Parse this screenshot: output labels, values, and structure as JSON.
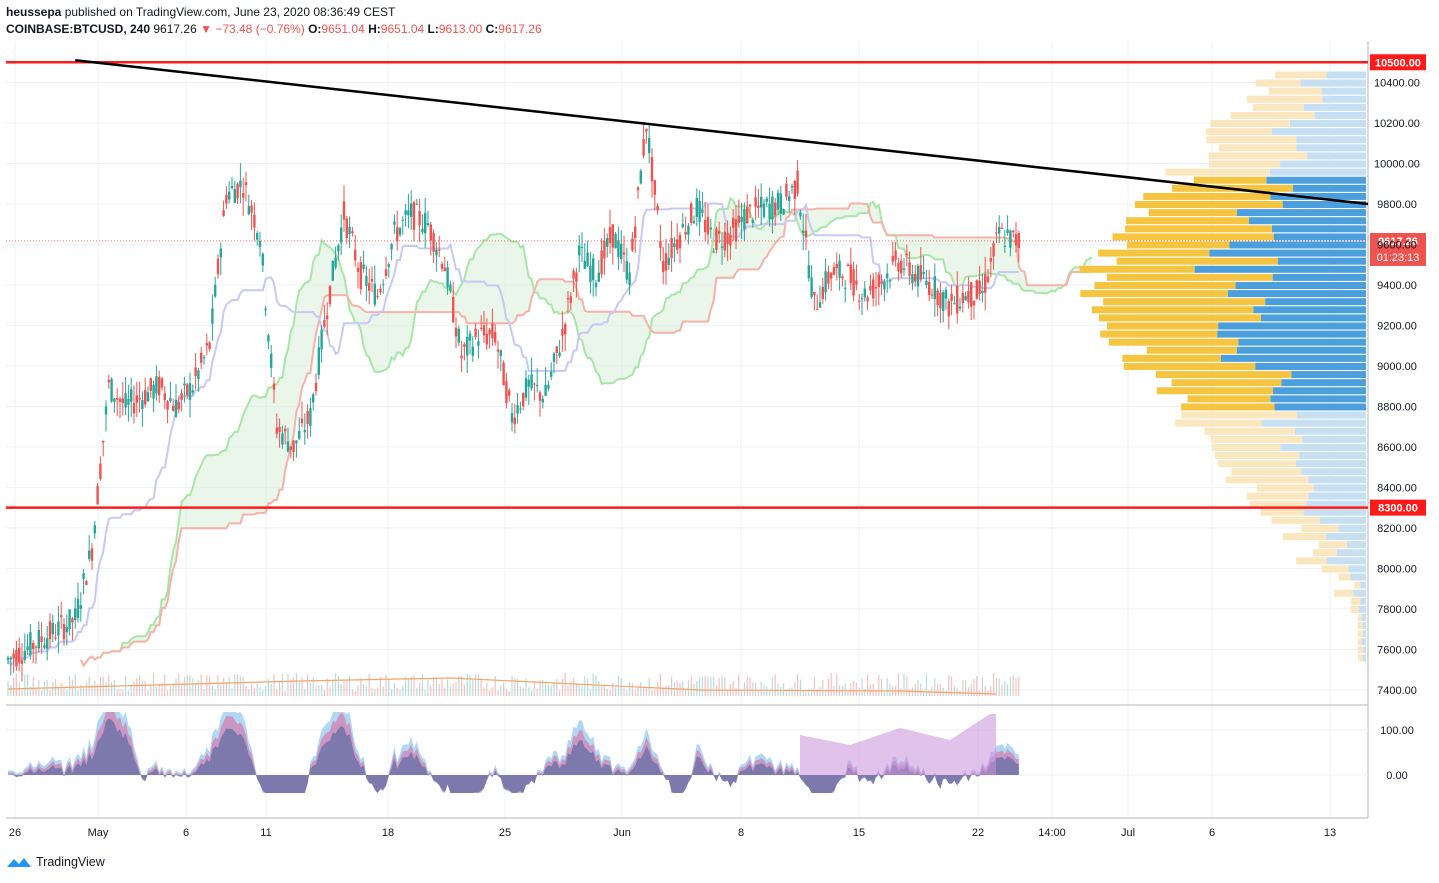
{
  "header": {
    "user": "heussepa",
    "published": "published on TradingView.com, June 23, 2020 08:36:49 CEST",
    "symbol": "COINBASE:BTCUSD, 240",
    "last": "9617.26",
    "change": "▼ −73.48 (−0.76%)",
    "o_label": "O:",
    "o": "9651.04",
    "h_label": "H:",
    "h": "9651.04",
    "l_label": "L:",
    "l": "9613.00",
    "c_label": "C:",
    "c": "9617.26"
  },
  "footer": {
    "brand": "TradingView"
  },
  "colors": {
    "up": "#26a69a",
    "down": "#ef5350",
    "support": "#ff1a1a",
    "trend": "#000000",
    "kijun": "#c8c8f5",
    "senkou_a": "#a8e6a8",
    "senkou_b": "#f5b2a8",
    "vp_up": "#4a9fdc",
    "vp_down": "#f5c542"
  },
  "chart_data": {
    "type": "candlestick",
    "price_axis": {
      "ticks": [
        "10400.00",
        "10200.00",
        "10000.00",
        "9800.00",
        "9600.00",
        "9400.00",
        "9200.00",
        "9000.00",
        "8800.00",
        "8600.00",
        "8400.00",
        "8200.00",
        "8000.00",
        "7800.00",
        "7600.00",
        "7400.00"
      ],
      "range": [
        7330,
        10605
      ]
    },
    "time_axis": {
      "ticks": [
        "26",
        "May",
        "6",
        "11",
        "18",
        "25",
        "Jun",
        "8",
        "15",
        "22",
        "14:00",
        "Jul",
        "6",
        "13"
      ]
    },
    "horizontal_levels": [
      {
        "price": 10500,
        "label": "10500.00"
      },
      {
        "price": 8300,
        "label": "8300.00"
      }
    ],
    "last_price_label": "9617.26",
    "countdown_label": "01:23:13",
    "trendline": {
      "from": [
        "Apr 28",
        10510
      ],
      "to": [
        "Jul 14",
        9800
      ]
    },
    "close_path": [
      [
        "Apr 24",
        7550
      ],
      [
        "Apr 26",
        7650
      ],
      [
        "Apr 28",
        7750
      ],
      [
        "Apr 29",
        8100
      ],
      [
        "Apr 30",
        8900
      ],
      [
        "May 1",
        8800
      ],
      [
        "May 2",
        8850
      ],
      [
        "May 3",
        8900
      ],
      [
        "May 4",
        8800
      ],
      [
        "May 5",
        8900
      ],
      [
        "May 6",
        9100
      ],
      [
        "May 7",
        9850
      ],
      [
        "May 8",
        9900
      ],
      [
        "May 9",
        9650
      ],
      [
        "May 10",
        8700
      ],
      [
        "May 11",
        8600
      ],
      [
        "May 12",
        8750
      ],
      [
        "May 13",
        9300
      ],
      [
        "May 14",
        9750
      ],
      [
        "May 15",
        9450
      ],
      [
        "May 16",
        9350
      ],
      [
        "May 17",
        9650
      ],
      [
        "May 18",
        9750
      ],
      [
        "May 19",
        9700
      ],
      [
        "May 20",
        9500
      ],
      [
        "May 21",
        9050
      ],
      [
        "May 22",
        9150
      ],
      [
        "May 23",
        9150
      ],
      [
        "May 24",
        8750
      ],
      [
        "May 25",
        8900
      ],
      [
        "May 26",
        8850
      ],
      [
        "May 27",
        9150
      ],
      [
        "May 28",
        9550
      ],
      [
        "May 29",
        9450
      ],
      [
        "May 30",
        9650
      ],
      [
        "May 31",
        9450
      ],
      [
        "Jun 1",
        10200
      ],
      [
        "Jun 2",
        9500
      ],
      [
        "Jun 3",
        9650
      ],
      [
        "Jun 4",
        9780
      ],
      [
        "Jun 5",
        9620
      ],
      [
        "Jun 6",
        9650
      ],
      [
        "Jun 7",
        9750
      ],
      [
        "Jun 8",
        9780
      ],
      [
        "Jun 9",
        9800
      ],
      [
        "Jun 10",
        9900
      ],
      [
        "Jun 11",
        9300
      ],
      [
        "Jun 12",
        9460
      ],
      [
        "Jun 13",
        9450
      ],
      [
        "Jun 14",
        9350
      ],
      [
        "Jun 15",
        9420
      ],
      [
        "Jun 16",
        9520
      ],
      [
        "Jun 17",
        9450
      ],
      [
        "Jun 18",
        9400
      ],
      [
        "Jun 19",
        9300
      ],
      [
        "Jun 20",
        9350
      ],
      [
        "Jun 21",
        9360
      ],
      [
        "Jun 22",
        9650
      ],
      [
        "Jun 23",
        9617
      ]
    ],
    "oscillator": {
      "ticks": [
        "100.00",
        "0.00"
      ]
    }
  }
}
